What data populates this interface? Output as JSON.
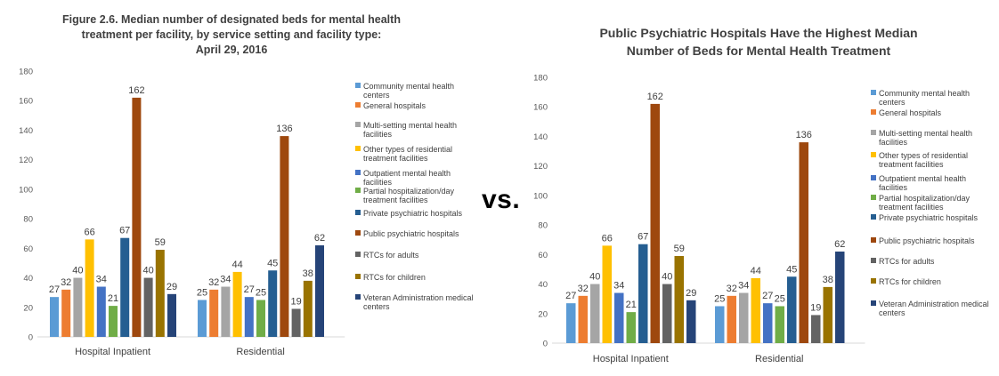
{
  "separator": "vs.",
  "chart_data": [
    {
      "type": "bar",
      "title_lines": [
        "Figure 2.6. Median number of designated beds for mental health",
        "treatment per facility, by service setting and facility type:",
        "April 29, 2016"
      ],
      "categories": [
        "Hospital Inpatient",
        "Residential"
      ],
      "ylim": [
        0,
        180
      ],
      "yticks": [
        0,
        20,
        40,
        60,
        80,
        100,
        120,
        140,
        160,
        180
      ],
      "xlabel": "",
      "ylabel": "",
      "grid": false,
      "legend_position": "right",
      "data_labels": true,
      "series": [
        {
          "name": "Community mental health centers",
          "color": "#5B9BD5",
          "values": [
            27,
            25
          ]
        },
        {
          "name": "General hospitals",
          "color": "#ED7D31",
          "values": [
            32,
            32
          ]
        },
        {
          "name": "Multi-setting mental health facilities",
          "color": "#A5A5A5",
          "values": [
            40,
            34
          ]
        },
        {
          "name": "Other types of residential treatment facilities",
          "color": "#FFC000",
          "values": [
            66,
            44
          ]
        },
        {
          "name": "Outpatient mental health facilities",
          "color": "#4472C4",
          "values": [
            34,
            27
          ]
        },
        {
          "name": "Partial hospitalization/day treatment facilities",
          "color": "#70AD47",
          "values": [
            21,
            25
          ]
        },
        {
          "name": "Private psychiatric hospitals",
          "color": "#255E91",
          "values": [
            67,
            45
          ]
        },
        {
          "name": "Public psychiatric hospitals",
          "color": "#9E480E",
          "values": [
            162,
            136
          ]
        },
        {
          "name": "RTCs for adults",
          "color": "#636363",
          "values": [
            40,
            19
          ]
        },
        {
          "name": "RTCs for children",
          "color": "#997300",
          "values": [
            59,
            38
          ]
        },
        {
          "name": "Veteran Administration medical centers",
          "color": "#264478",
          "values": [
            29,
            62
          ]
        }
      ]
    },
    {
      "type": "bar",
      "title_lines": [
        "Public Psychiatric Hospitals Have the Highest Median",
        "Number of Beds for Mental Health Treatment"
      ],
      "categories": [
        "Hospital Inpatient",
        "Residential"
      ],
      "ylim": [
        0,
        180
      ],
      "yticks": [
        0,
        20,
        40,
        60,
        80,
        100,
        120,
        140,
        160,
        180
      ],
      "xlabel": "",
      "ylabel": "",
      "grid": false,
      "legend_position": "right",
      "data_labels": true,
      "series": [
        {
          "name": "Community mental health centers",
          "color": "#5B9BD5",
          "values": [
            27,
            25
          ]
        },
        {
          "name": "General hospitals",
          "color": "#ED7D31",
          "values": [
            32,
            32
          ]
        },
        {
          "name": "Multi-setting mental health facilities",
          "color": "#A5A5A5",
          "values": [
            40,
            34
          ]
        },
        {
          "name": "Other types of residential treatment facilities",
          "color": "#FFC000",
          "values": [
            66,
            44
          ]
        },
        {
          "name": "Outpatient mental health facilities",
          "color": "#4472C4",
          "values": [
            34,
            27
          ]
        },
        {
          "name": "Partial hospitalization/day treatment facilities",
          "color": "#70AD47",
          "values": [
            21,
            25
          ]
        },
        {
          "name": "Private psychiatric hospitals",
          "color": "#255E91",
          "values": [
            67,
            45
          ]
        },
        {
          "name": "Public psychiatric hospitals",
          "color": "#9E480E",
          "values": [
            162,
            136
          ]
        },
        {
          "name": "RTCs for adults",
          "color": "#636363",
          "values": [
            40,
            19
          ]
        },
        {
          "name": "RTCs for children",
          "color": "#997300",
          "values": [
            59,
            38
          ]
        },
        {
          "name": "Veteran Administration medical centers",
          "color": "#264478",
          "values": [
            29,
            62
          ]
        }
      ]
    }
  ]
}
